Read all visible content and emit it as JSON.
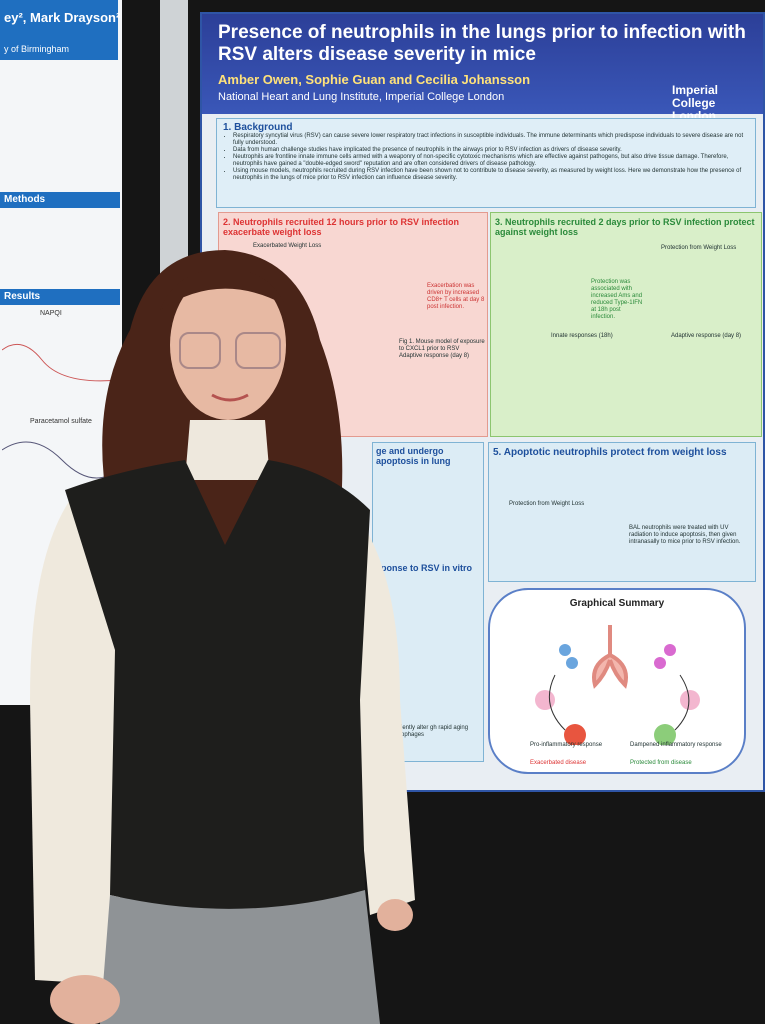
{
  "left_poster": {
    "authors": "ey², Mark Drayson²",
    "affiliation": "y of Birmingham",
    "methods_heading": "Methods",
    "results_heading": "Results",
    "plot_label": "NAPQI",
    "plot_label_2": "Paracetamol sulfate"
  },
  "main_poster": {
    "title": "Presence of neutrophils in the lungs prior to infection with RSV alters disease severity in mice",
    "author_lead": "Amber Owen",
    "authors_rest": ", Sophie Guan and Cecilia Johansson",
    "institute": "National Heart and Lung Institute, Imperial College London",
    "logo": "Imperial College London",
    "background": {
      "heading": "1. Background",
      "bullets": [
        "Respiratory syncytial virus (RSV) can cause severe lower respiratory tract infections in susceptible individuals. The immune determinants which predispose individuals to severe disease are not fully understood.",
        "Data from human challenge studies have implicated the presence of neutrophils in the airways prior to RSV infection as drivers of disease severity.",
        "Neutrophils are frontline innate immune cells armed with a weaponry of non-specific cytotoxic mechanisms which are effective against pathogens, but also drive tissue damage. Therefore, neutrophils have gained a \"double-edged sword\" reputation and are often considered drivers of disease pathology.",
        "Using mouse models, neutrophils recruited during RSV infection have been shown not to contribute to disease severity, as measured by weight loss. Here we demonstrate how the presence of neutrophils in the lungs of mice prior to RSV infection can influence disease severity."
      ]
    },
    "section_2": {
      "heading": "2. Neutrophils recruited 12 hours prior to RSV infection exacerbate weight loss",
      "panel_title": "Exacerbated Weight Loss",
      "note": "Exacerbation was driven by increased CD8+ T cells at day 8 post infection.",
      "fig_caption": "Fig 1. Mouse model of exposure to CXCL1 prior to RSV",
      "adaptive": "Adaptive response (day 8)"
    },
    "section_3": {
      "heading": "3. Neutrophils recruited 2 days prior to RSV infection protect against weight loss",
      "panel_title": "Protection from Weight Loss",
      "note": "Protection was associated with increased Ams and reduced Type-1IFN at 18h post infection.",
      "innate": "Innate responses (18h)",
      "adaptive": "Adaptive response (day 8)"
    },
    "section_4": {
      "heading": "ge and undergo apoptosis in lung",
      "subheading": "sponse to RSV in vitro",
      "footer": "and transiently alter gh rapid aging and macrophages"
    },
    "section_5": {
      "heading": "5. Apoptotic neutrophils protect from weight loss",
      "panel_title": "Protection from Weight Loss",
      "note": "BAL neutrophils were treated with UV radiation to induce apoptosis, then given intranasally to mice prior to RSV infection."
    },
    "summary": {
      "heading": "Graphical Summary",
      "left_label": "Exacerbated disease",
      "right_label": "Protected from disease",
      "left_response": "Pro-inflammatory response",
      "right_response": "Dampened inflammatory response"
    }
  }
}
